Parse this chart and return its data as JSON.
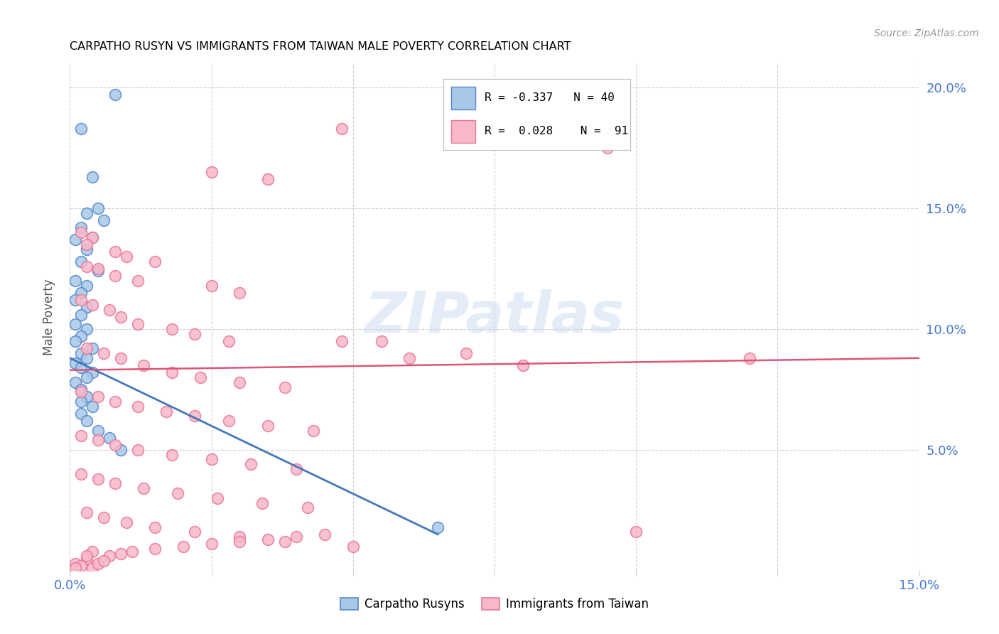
{
  "title": "CARPATHO RUSYN VS IMMIGRANTS FROM TAIWAN MALE POVERTY CORRELATION CHART",
  "source": "Source: ZipAtlas.com",
  "ylabel": "Male Poverty",
  "xlim": [
    0.0,
    0.15
  ],
  "ylim": [
    0.0,
    0.21
  ],
  "xtick_left_label": "0.0%",
  "xtick_right_label": "15.0%",
  "ytick_labels": [
    "5.0%",
    "10.0%",
    "15.0%",
    "20.0%"
  ],
  "ytick_values": [
    0.05,
    0.1,
    0.15,
    0.2
  ],
  "legend_r_blue": "-0.337",
  "legend_n_blue": "40",
  "legend_r_pink": "0.028",
  "legend_n_pink": "91",
  "blue_color": "#a8c8e8",
  "pink_color": "#f8b8c8",
  "blue_edge_color": "#5588cc",
  "pink_edge_color": "#e87898",
  "blue_line_color": "#4477bb",
  "pink_line_color": "#dd5577",
  "tick_color": "#4477cc",
  "watermark": "ZIPatlas",
  "blue_x": [
    0.008,
    0.002,
    0.004,
    0.005,
    0.003,
    0.006,
    0.002,
    0.004,
    0.001,
    0.003,
    0.002,
    0.005,
    0.001,
    0.003,
    0.002,
    0.001,
    0.003,
    0.002,
    0.001,
    0.003,
    0.002,
    0.001,
    0.004,
    0.002,
    0.003,
    0.001,
    0.002,
    0.004,
    0.003,
    0.001,
    0.002,
    0.003,
    0.002,
    0.004,
    0.002,
    0.003,
    0.005,
    0.007,
    0.009,
    0.065
  ],
  "blue_y": [
    0.197,
    0.183,
    0.163,
    0.15,
    0.148,
    0.145,
    0.142,
    0.138,
    0.137,
    0.133,
    0.128,
    0.124,
    0.12,
    0.118,
    0.115,
    0.112,
    0.109,
    0.106,
    0.102,
    0.1,
    0.097,
    0.095,
    0.092,
    0.09,
    0.088,
    0.086,
    0.084,
    0.082,
    0.08,
    0.078,
    0.075,
    0.072,
    0.07,
    0.068,
    0.065,
    0.062,
    0.058,
    0.055,
    0.05,
    0.018
  ],
  "pink_x": [
    0.048,
    0.095,
    0.025,
    0.035,
    0.002,
    0.004,
    0.003,
    0.008,
    0.01,
    0.015,
    0.003,
    0.005,
    0.008,
    0.012,
    0.025,
    0.03,
    0.002,
    0.004,
    0.007,
    0.009,
    0.012,
    0.018,
    0.022,
    0.028,
    0.048,
    0.055,
    0.003,
    0.006,
    0.009,
    0.013,
    0.018,
    0.023,
    0.03,
    0.038,
    0.002,
    0.005,
    0.008,
    0.012,
    0.017,
    0.022,
    0.028,
    0.035,
    0.043,
    0.002,
    0.005,
    0.008,
    0.012,
    0.018,
    0.025,
    0.032,
    0.04,
    0.002,
    0.005,
    0.008,
    0.013,
    0.019,
    0.026,
    0.034,
    0.042,
    0.003,
    0.006,
    0.01,
    0.015,
    0.022,
    0.03,
    0.038,
    0.05,
    0.004,
    0.007,
    0.003,
    0.001,
    0.002,
    0.001,
    0.004,
    0.005,
    0.006,
    0.003,
    0.009,
    0.011,
    0.015,
    0.02,
    0.025,
    0.03,
    0.035,
    0.04,
    0.045,
    0.1,
    0.12,
    0.06,
    0.07,
    0.08
  ],
  "pink_y": [
    0.183,
    0.175,
    0.165,
    0.162,
    0.14,
    0.138,
    0.135,
    0.132,
    0.13,
    0.128,
    0.126,
    0.125,
    0.122,
    0.12,
    0.118,
    0.115,
    0.112,
    0.11,
    0.108,
    0.105,
    0.102,
    0.1,
    0.098,
    0.095,
    0.095,
    0.095,
    0.092,
    0.09,
    0.088,
    0.085,
    0.082,
    0.08,
    0.078,
    0.076,
    0.074,
    0.072,
    0.07,
    0.068,
    0.066,
    0.064,
    0.062,
    0.06,
    0.058,
    0.056,
    0.054,
    0.052,
    0.05,
    0.048,
    0.046,
    0.044,
    0.042,
    0.04,
    0.038,
    0.036,
    0.034,
    0.032,
    0.03,
    0.028,
    0.026,
    0.024,
    0.022,
    0.02,
    0.018,
    0.016,
    0.014,
    0.012,
    0.01,
    0.008,
    0.006,
    0.005,
    0.003,
    0.002,
    0.001,
    0.001,
    0.003,
    0.004,
    0.006,
    0.007,
    0.008,
    0.009,
    0.01,
    0.011,
    0.012,
    0.013,
    0.014,
    0.015,
    0.016,
    0.088,
    0.088,
    0.09,
    0.085
  ],
  "blue_line_x0": 0.0,
  "blue_line_y0": 0.088,
  "blue_line_x1": 0.065,
  "blue_line_y1": 0.015,
  "pink_line_x0": 0.0,
  "pink_line_y0": 0.083,
  "pink_line_x1": 0.15,
  "pink_line_y1": 0.088
}
